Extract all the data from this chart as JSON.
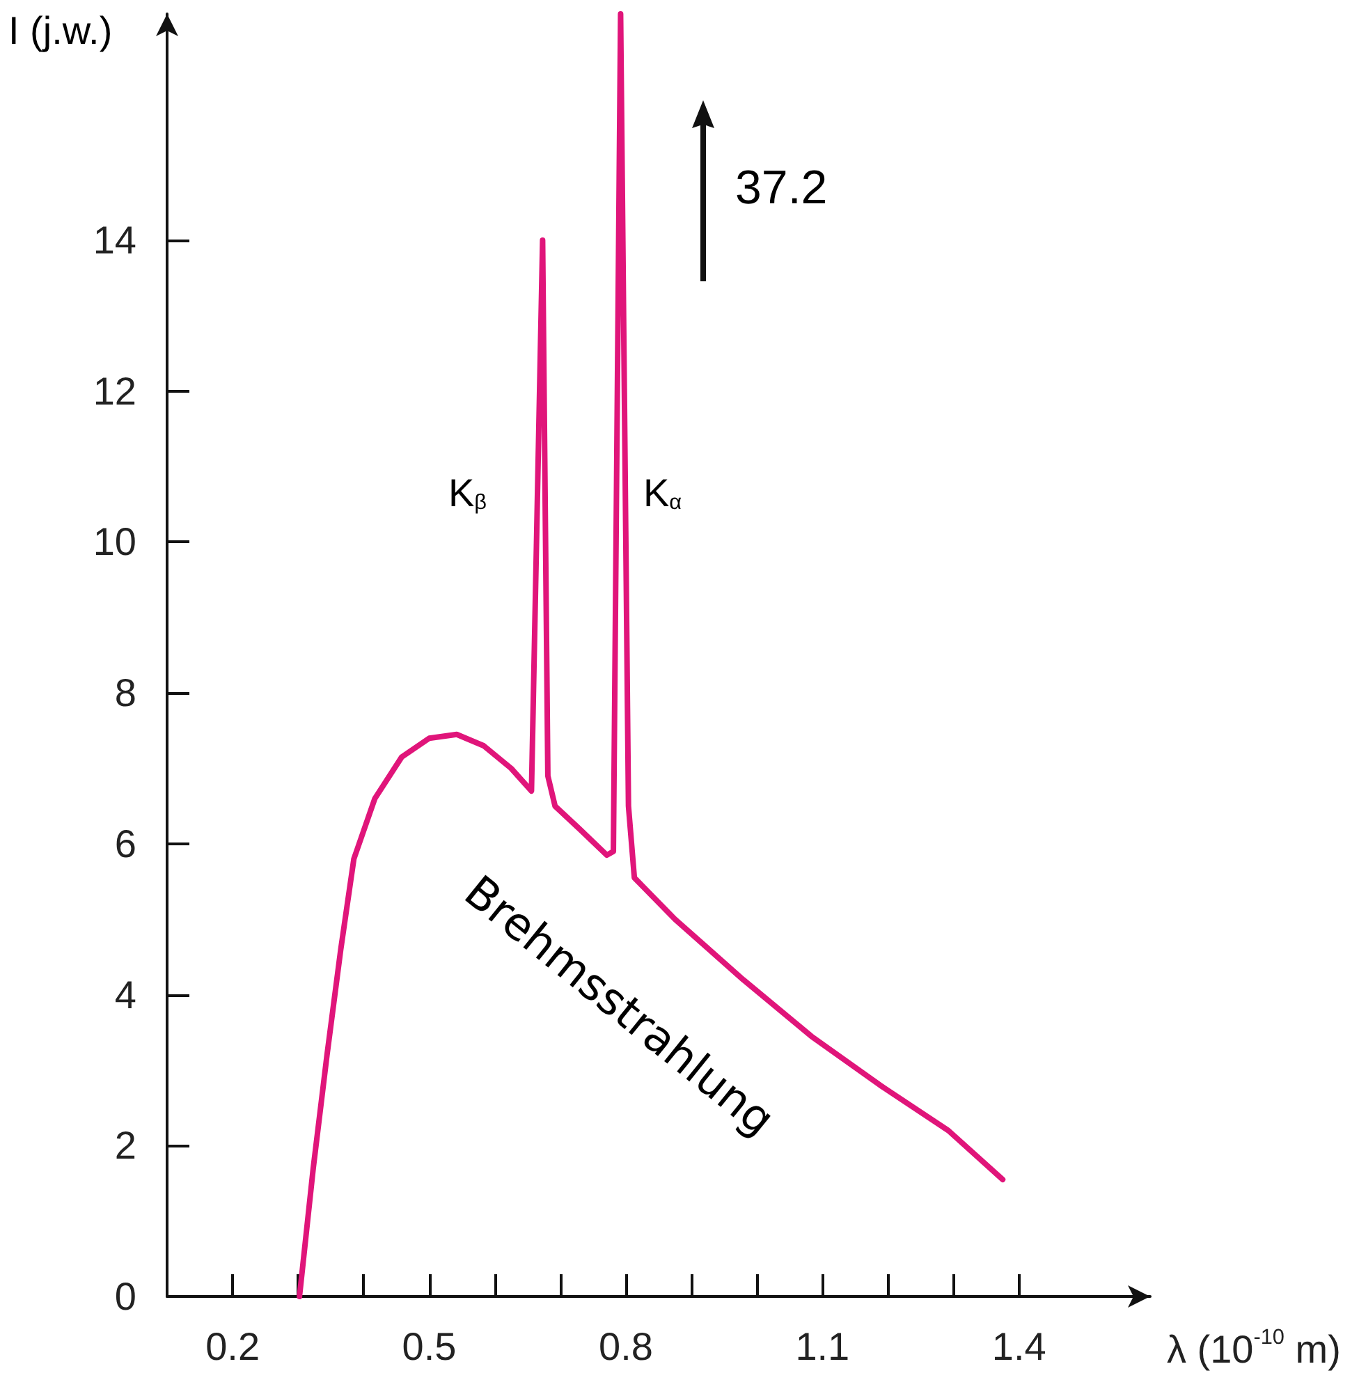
{
  "chart_data": {
    "type": "line",
    "xlabel": "λ (10$^{-10}$ m)",
    "ylabel": "I (j.w.)",
    "annotations": [
      "K$_{β}$",
      "K$_{α}$",
      "37.2",
      "Brehmsstrahlung"
    ],
    "xlim": [
      0.1,
      1.6
    ],
    "ylim": [
      0,
      17
    ],
    "xticks": [
      0.2,
      {
        "value": 0.3,
        "label": null
      },
      {
        "value": 0.4,
        "label": null
      },
      0.5,
      {
        "value": 0.6,
        "label": null
      },
      {
        "value": 0.7,
        "label": null
      },
      0.8,
      {
        "value": 0.9,
        "label": null
      },
      {
        "value": 1.0,
        "label": null
      },
      1.1,
      {
        "value": 1.2,
        "label": null
      },
      {
        "value": 1.3,
        "label": null
      },
      1.4
    ],
    "yticks": [
      0,
      2,
      4,
      6,
      8,
      10,
      12,
      14
    ],
    "grid": false,
    "marker": "none",
    "line_style": "solid",
    "series": [
      {
        "color": "#e0157a",
        "x": [
          0.302,
          0.323,
          0.344,
          0.365,
          0.385,
          0.417,
          0.458,
          0.5,
          0.542,
          0.583,
          0.625,
          0.656,
          0.673,
          0.681,
          0.692,
          0.729,
          0.771,
          0.781,
          0.792,
          0.804,
          0.813,
          0.875,
          0.979,
          1.083,
          1.188,
          1.292,
          1.375
        ],
        "values": [
          0,
          1.7,
          3.2,
          4.6,
          5.8,
          6.6,
          7.15,
          7.4,
          7.45,
          7.3,
          7.0,
          6.7,
          14.0,
          6.9,
          6.5,
          6.2,
          5.85,
          5.9,
          17,
          6.5,
          5.55,
          5.0,
          4.2,
          3.45,
          2.8,
          2.2,
          1.55
        ]
      }
    ]
  }
}
